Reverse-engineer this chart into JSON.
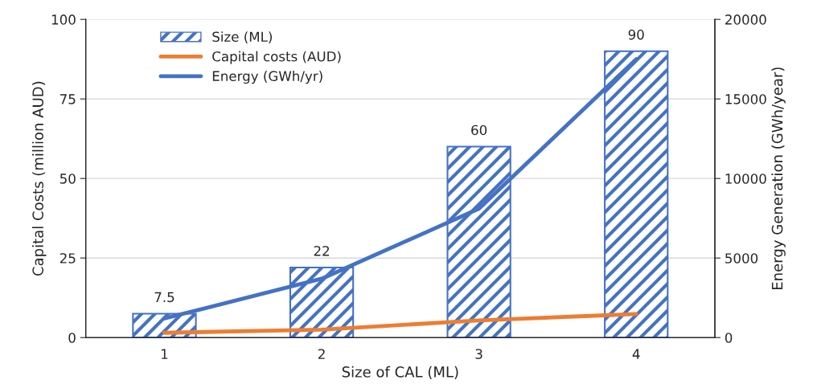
{
  "chart_data": {
    "type": "bar",
    "xlabel": "Size of CAL (ML)",
    "ylabel": "Capital Costs (million AUD)",
    "y2label": "Energy Generation (GWh/year)",
    "categories": [
      "1",
      "2",
      "3",
      "4"
    ],
    "series": [
      {
        "name": "Size (ML)",
        "color": "#4472c4",
        "values": [
          7.5,
          22,
          60,
          90
        ],
        "value_labels": [
          "7.5",
          "22",
          "60",
          "90"
        ]
      },
      {
        "name": "Capital costs (AUD)",
        "type": "line",
        "color": "#ed7d31",
        "values": [
          1.5,
          2.5,
          5.4,
          7.4
        ]
      },
      {
        "name": "Energy (GWh/yr)",
        "type": "line",
        "axis": "y2",
        "color": "#4472c4",
        "values": [
          1200,
          3700,
          8100,
          17500
        ]
      }
    ],
    "ylim": [
      0,
      100
    ],
    "yticks": [
      0,
      25,
      50,
      75,
      100
    ],
    "y2lim": [
      0,
      20000
    ],
    "y2ticks": [
      0,
      5000,
      10000,
      15000,
      20000
    ],
    "grid": "y",
    "legend": "top left",
    "marker": "none",
    "line_style": "solid"
  }
}
